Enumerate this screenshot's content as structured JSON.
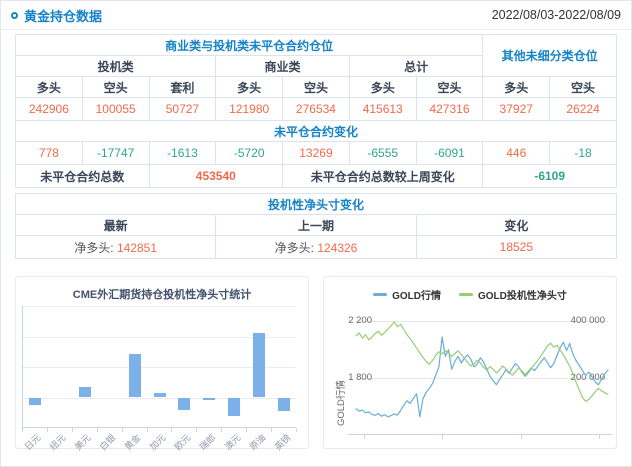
{
  "header": {
    "title": "黄金持仓数据",
    "date_range": "2022/08/03-2022/08/09"
  },
  "position_table": {
    "group_main": "商业类与投机类未平仓合约仓位",
    "group_other": "其他未细分类仓位",
    "sub_spec": "投机类",
    "sub_comm": "商业类",
    "sub_total": "总计",
    "col_headers": [
      "多头",
      "空头",
      "套利",
      "多头",
      "空头",
      "多头",
      "空头",
      "多头",
      "空头"
    ],
    "values": [
      "242906",
      "100055",
      "50727",
      "121980",
      "276534",
      "415613",
      "427316",
      "37927",
      "26224"
    ],
    "change_title": "未平仓合约变化",
    "changes": [
      "778",
      "-17747",
      "-1613",
      "-5720",
      "13269",
      "-6555",
      "-6091",
      "446",
      "-18"
    ],
    "total_label": "未平仓合约总数",
    "total_value": "453540",
    "total_change_label": "未平仓合约总数较上周变化",
    "total_change_value": "-6109"
  },
  "net_position_table": {
    "title": "投机性净头寸变化",
    "headers": [
      "最新",
      "上一期",
      "变化"
    ],
    "latest_prefix": "净多头:",
    "latest_value": "142851",
    "prev_prefix": "净多头:",
    "prev_value": "124326",
    "change_value": "18525"
  },
  "colors": {
    "accent_blue": "#1583c5",
    "value_positive": "#f4694a",
    "value_negative": "#2fa58e",
    "bar_blue": "#7cb0e8",
    "line_blue": "#69aed6",
    "line_green": "#94cf72"
  },
  "chart_data": [
    {
      "type": "bar",
      "title": "CME外汇期货持仓投机性净头寸统计",
      "categories": [
        "日元",
        "纽元",
        "美元",
        "白银",
        "黄金",
        "加元",
        "欧元",
        "瑞郎",
        "澳元",
        "原油",
        "英镑"
      ],
      "values": [
        -26000,
        0,
        36000,
        0,
        142851,
        16000,
        -41000,
        -8000,
        -62000,
        213000,
        -43000
      ],
      "ylim": [
        -100000,
        300000
      ],
      "gridlines": [
        300000,
        200000,
        100000,
        0
      ],
      "bar_color": "#7cb0e8",
      "y_labels_shown": false,
      "xlabel": "",
      "ylabel": ""
    },
    {
      "type": "line",
      "title": "",
      "legend_position": "top",
      "grid": "horizontal",
      "x_axis_labels": [],
      "y_left": {
        "title": "GOLD行情",
        "max": 2200,
        "min": 1407,
        "ticks": [
          {
            "label": "2 200",
            "value": 2200
          },
          {
            "label": "1 800",
            "value": 1800
          }
        ]
      },
      "y_right": {
        "max": 400000,
        "min": 3500,
        "ticks": [
          {
            "label": "400 000",
            "value": 400000
          },
          {
            "label": "200 000",
            "value": 200000
          }
        ]
      },
      "series": [
        {
          "name": "GOLD行情",
          "axis": "left",
          "color": "#69aed6",
          "values": [
            1583,
            1568,
            1575,
            1556,
            1562,
            1545,
            1538,
            1550,
            1532,
            1542,
            1528,
            1536,
            1548,
            1540,
            1572,
            1610,
            1640,
            1622,
            1658,
            1690,
            1528,
            1655,
            1700,
            1728,
            1762,
            1820,
            1878,
            2088,
            1952,
            1998,
            1862,
            1918,
            1952,
            1905,
            1940,
            1962,
            1932,
            1878,
            1898,
            1942,
            1912,
            1862,
            1812,
            1782,
            1752,
            1788,
            1822,
            1858,
            1832,
            1868,
            1902,
            1878,
            1842,
            1812,
            1838,
            1868,
            1852,
            1882,
            1912,
            1942,
            1908,
            1872,
            1902,
            1958,
            2012,
            2052,
            1992,
            2042,
            1968,
            1922,
            1888,
            1852,
            1818,
            1842,
            1808,
            1772,
            1752,
            1792,
            1828,
            1856
          ]
        },
        {
          "name": "GOLD投机性净头寸",
          "axis": "right",
          "color": "#94cf72",
          "values": [
            348000,
            358000,
            340000,
            352000,
            334000,
            344000,
            356000,
            364000,
            350000,
            360000,
            372000,
            383000,
            397000,
            380000,
            388000,
            370000,
            352000,
            338000,
            322000,
            305000,
            288000,
            272000,
            258000,
            248000,
            262000,
            278000,
            292000,
            285000,
            296000,
            288000,
            275000,
            286000,
            295000,
            282000,
            268000,
            255000,
            242000,
            250000,
            262000,
            252000,
            238000,
            228000,
            240000,
            230000,
            218000,
            228000,
            242000,
            232000,
            220000,
            210000,
            222000,
            235000,
            225000,
            212000,
            224000,
            236000,
            248000,
            262000,
            278000,
            295000,
            312000,
            322000,
            308000,
            315000,
            298000,
            282000,
            262000,
            242000,
            215000,
            185000,
            158000,
            132000,
            118000,
            125000,
            138000,
            152000,
            164000,
            155000,
            148000,
            142851
          ]
        }
      ]
    }
  ]
}
